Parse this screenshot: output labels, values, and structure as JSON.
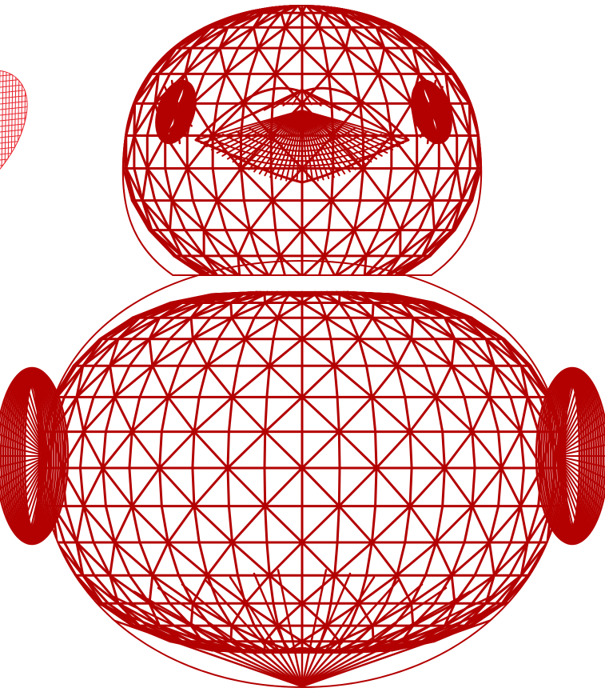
{
  "scene": {
    "background_color": "#ffffff",
    "wire_color": "#b30000",
    "secondary_wire_color": "#e8262f",
    "main_object_icon": "rubber-duck-wireframe",
    "secondary_object_icon": "heart-wireframe",
    "render_mode": "wireframe"
  }
}
